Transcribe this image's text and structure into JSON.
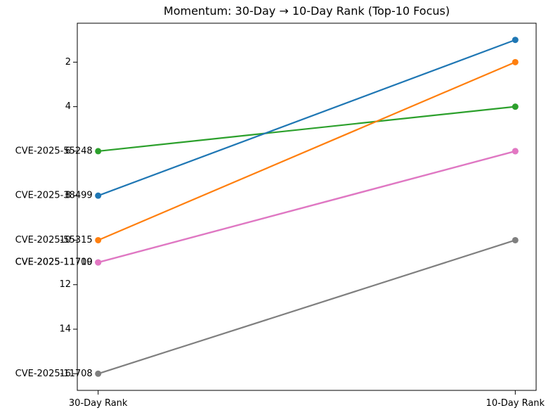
{
  "chart_data": {
    "type": "line",
    "variant": "slopegraph",
    "title": "Momentum: 30-Day → 10-Day Rank (Top-10 Focus)",
    "x_categories": [
      "30-Day Rank",
      "10-Day Rank"
    ],
    "xlim": [
      -0.05,
      1.05
    ],
    "y_axis": {
      "ticks": [
        2,
        4,
        6,
        8,
        10,
        12,
        14,
        16
      ],
      "inverted": true,
      "ylim": [
        0.25,
        16.75
      ]
    },
    "grid": false,
    "legend": "none",
    "series": [
      {
        "name": "CVE-2025-55248",
        "values": [
          6,
          4
        ],
        "color": "#2ca02c"
      },
      {
        "name": "CVE-2025-11709",
        "values": [
          11,
          6
        ],
        "color": "#9467bd",
        "note": "hidden exactly beneath CVE-2025-11710; its label overprints creating bold overlapped text"
      },
      {
        "name": "CVE-2025-11710",
        "values": [
          11,
          6
        ],
        "color": "#e377c2"
      },
      {
        "name": "CVE-2025-11708",
        "values": [
          16,
          10
        ],
        "color": "#7f7f7f"
      },
      {
        "name": "CVE-2025-38499",
        "values": [
          8,
          1
        ],
        "color": "#1f77b4"
      },
      {
        "name": "CVE-2025-55315",
        "values": [
          10,
          2
        ],
        "color": "#ff7f0e"
      }
    ]
  },
  "colors": {
    "background": "#ffffff",
    "axis": "#000000",
    "text": "#000000"
  }
}
